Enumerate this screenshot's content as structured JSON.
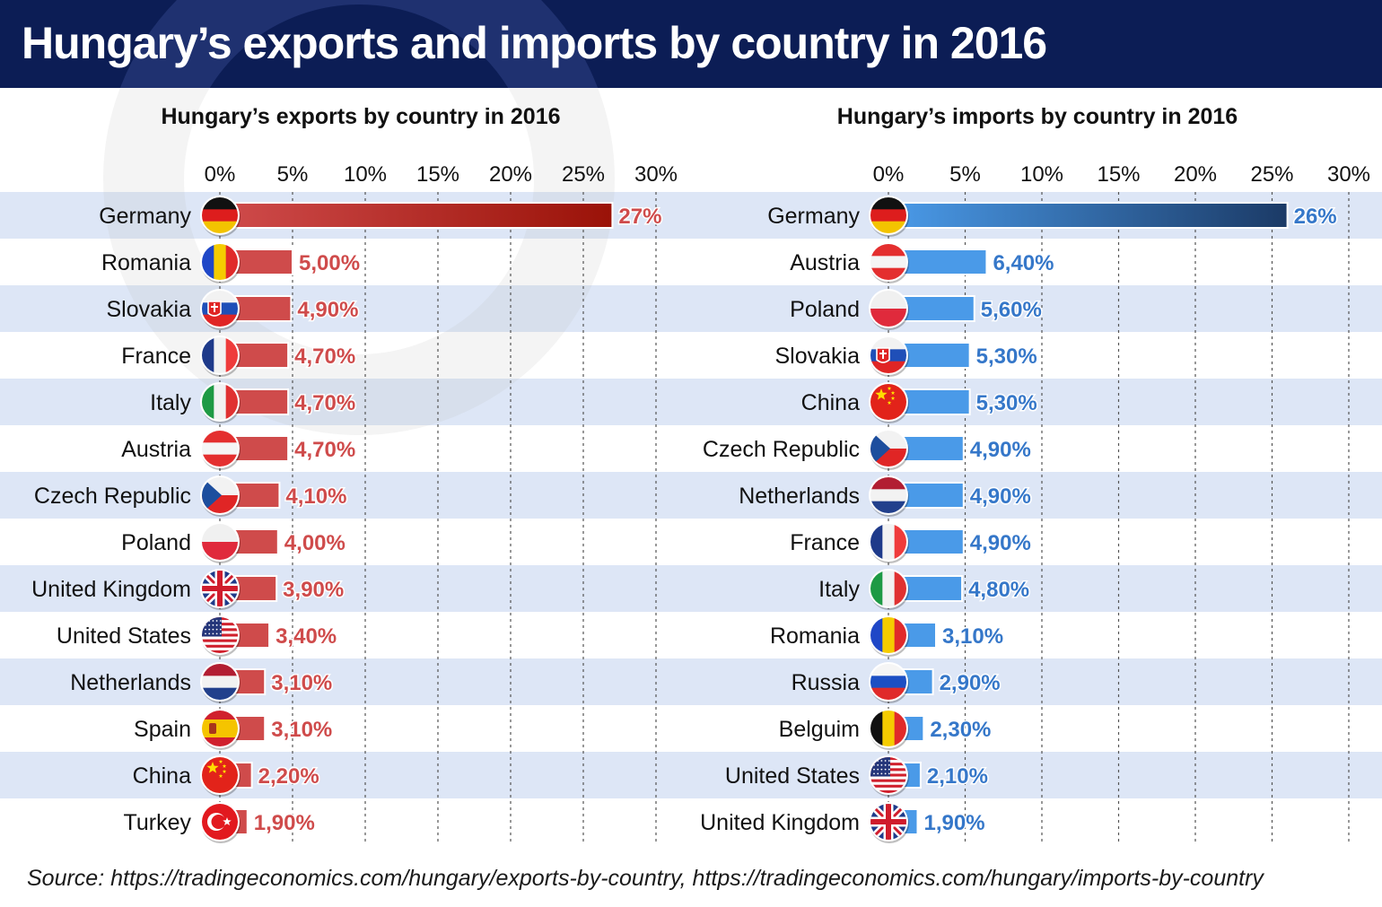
{
  "header": {
    "title": "Hungary’s exports and imports by country in 2016",
    "bg_color": "#0c1d55"
  },
  "chart_data": [
    {
      "type": "bar",
      "orientation": "horizontal",
      "title": "Hungary’s exports by country in 2016",
      "xlim": [
        0,
        30
      ],
      "xticks": [
        "0%",
        "5%",
        "10%",
        "15%",
        "20%",
        "25%",
        "30%"
      ],
      "grid": true,
      "bar_color": "#cf4b4b",
      "top_bar_color": "#9a1208",
      "label_color": "#cf4b4b",
      "categories": [
        "Germany",
        "Romania",
        "Slovakia",
        "France",
        "Italy",
        "Austria",
        "Czech Republic",
        "Poland",
        "United Kingdom",
        "United States",
        "Netherlands",
        "Spain",
        "China",
        "Turkey"
      ],
      "values": [
        27,
        5.0,
        4.9,
        4.7,
        4.7,
        4.7,
        4.1,
        4.0,
        3.9,
        3.4,
        3.1,
        3.1,
        2.2,
        1.9
      ],
      "value_labels": [
        "27%",
        "5,00%",
        "4,90%",
        "4,70%",
        "4,70%",
        "4,70%",
        "4,10%",
        "4,00%",
        "3,90%",
        "3,40%",
        "3,10%",
        "3,10%",
        "2,20%",
        "1,90%"
      ],
      "flags": [
        "germany-flag",
        "romania-flag",
        "slovakia-flag",
        "france-flag",
        "italy-flag",
        "austria-flag",
        "czech-flag",
        "poland-flag",
        "uk-flag",
        "usa-flag",
        "netherlands-flag",
        "spain-flag",
        "china-flag",
        "turkey-flag"
      ]
    },
    {
      "type": "bar",
      "orientation": "horizontal",
      "title": "Hungary’s imports by country in 2016",
      "xlim": [
        0,
        30
      ],
      "xticks": [
        "0%",
        "5%",
        "10%",
        "15%",
        "20%",
        "25%",
        "30%"
      ],
      "grid": true,
      "bar_color": "#4a9ae8",
      "top_bar_color": "#1b3a66",
      "label_color": "#3577c9",
      "categories": [
        "Germany",
        "Austria",
        "Poland",
        "Slovakia",
        "China",
        "Czech Republic",
        "Netherlands",
        "France",
        "Italy",
        "Romania",
        "Russia",
        "Belguim",
        "United States",
        "United Kingdom"
      ],
      "values": [
        26,
        6.4,
        5.6,
        5.3,
        5.3,
        4.9,
        4.9,
        4.9,
        4.8,
        3.1,
        2.9,
        2.3,
        2.1,
        1.9
      ],
      "value_labels": [
        "26%",
        "6,40%",
        "5,60%",
        "5,30%",
        "5,30%",
        "4,90%",
        "4,90%",
        "4,90%",
        "4,80%",
        "3,10%",
        "2,90%",
        "2,30%",
        "2,10%",
        "1,90%"
      ],
      "flags": [
        "germany-flag",
        "austria-flag",
        "poland-flag",
        "slovakia-flag",
        "china-flag",
        "czech-flag",
        "netherlands-flag",
        "france-flag",
        "italy-flag",
        "romania-flag",
        "russia-flag",
        "belgium-flag",
        "usa-flag",
        "uk-flag"
      ]
    }
  ],
  "colors": {
    "row_stripe": "#dde6f6",
    "grid_line": "#555555"
  },
  "source": "Source: https://tradingeconomics.com/hungary/exports-by-country, https://tradingeconomics.com/hungary/imports-by-country"
}
